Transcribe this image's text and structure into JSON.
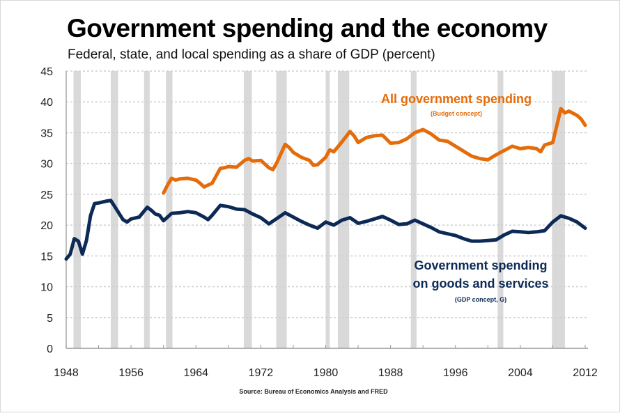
{
  "chart_data": {
    "type": "line",
    "title": "Government spending and the economy",
    "subtitle": "Federal, state, and local spending as a share of GDP (percent)",
    "source": "Source: Bureau of Economics Analysis and FRED",
    "xlabel": "",
    "ylabel": "",
    "xlim": [
      1948,
      2012
    ],
    "ylim": [
      0,
      45
    ],
    "grid": true,
    "y_ticks": [
      0,
      5,
      10,
      15,
      20,
      25,
      30,
      35,
      40,
      45
    ],
    "x_ticks": [
      1948,
      1956,
      1964,
      1972,
      1980,
      1988,
      1996,
      2004,
      2012
    ],
    "recessions": [
      [
        1948.9,
        1949.8
      ],
      [
        1953.5,
        1954.4
      ],
      [
        1957.6,
        1958.3
      ],
      [
        1960.3,
        1961.1
      ],
      [
        1969.9,
        1970.9
      ],
      [
        1973.9,
        1975.2
      ],
      [
        1980.0,
        1980.5
      ],
      [
        1981.5,
        1982.9
      ],
      [
        1990.5,
        1991.2
      ],
      [
        2001.2,
        2001.9
      ],
      [
        2007.9,
        2009.5
      ]
    ],
    "series": [
      {
        "name": "All government spending",
        "note": "(Budget concept)",
        "color": "#e46c0a",
        "x": [
          1960,
          1960.5,
          1961,
          1961.5,
          1962,
          1963,
          1964,
          1964.5,
          1965,
          1965.5,
          1966,
          1967,
          1967.5,
          1968,
          1969,
          1970,
          1970.5,
          1971,
          1972,
          1973,
          1973.5,
          1974,
          1975,
          1975.5,
          1976,
          1977,
          1978,
          1978.5,
          1979,
          1980,
          1980.5,
          1981,
          1982,
          1983,
          1983.5,
          1984,
          1985,
          1986,
          1987,
          1988,
          1989,
          1990,
          1991,
          1992,
          1993,
          1994,
          1995,
          1996,
          1997,
          1998,
          1999,
          2000,
          2001,
          2002,
          2003,
          2004,
          2005,
          2006,
          2006.5,
          2007,
          2008,
          2009,
          2009.5,
          2010,
          2011,
          2011.5,
          2012
        ],
        "values": [
          25.2,
          26.5,
          27.6,
          27.3,
          27.5,
          27.6,
          27.3,
          26.8,
          26.2,
          26.5,
          26.8,
          29.2,
          29.3,
          29.5,
          29.4,
          30.5,
          30.8,
          30.4,
          30.5,
          29.3,
          29.0,
          30.2,
          33.1,
          32.6,
          31.8,
          31.0,
          30.5,
          29.7,
          29.8,
          31.0,
          32.2,
          31.9,
          33.5,
          35.2,
          34.5,
          33.4,
          34.2,
          34.5,
          34.6,
          33.3,
          33.4,
          34.0,
          35.0,
          35.5,
          34.8,
          33.8,
          33.6,
          32.8,
          32.0,
          31.2,
          30.8,
          30.6,
          31.4,
          32.1,
          32.8,
          32.4,
          32.6,
          32.4,
          31.9,
          33.0,
          33.4,
          38.9,
          38.2,
          38.5,
          37.8,
          37.2,
          36.2
        ]
      },
      {
        "name": "Government spending on goods and services",
        "note": "(GDP concept, G)",
        "color": "#0c2a55",
        "x": [
          1948,
          1948.5,
          1949,
          1949.5,
          1950,
          1950.5,
          1951,
          1951.5,
          1952,
          1953,
          1953.5,
          1954,
          1955,
          1955.5,
          1956,
          1957,
          1958,
          1958.5,
          1959,
          1959.5,
          1960,
          1961,
          1962,
          1963,
          1964,
          1965,
          1965.5,
          1966,
          1967,
          1968,
          1969,
          1970,
          1971,
          1972,
          1973,
          1974,
          1975,
          1976,
          1977,
          1978,
          1979,
          1980,
          1981,
          1982,
          1983,
          1984,
          1985,
          1986,
          1987,
          1988,
          1989,
          1990,
          1991,
          1992,
          1993,
          1994,
          1995,
          1996,
          1997,
          1998,
          1999,
          2000,
          2001,
          2002,
          2003,
          2004,
          2005,
          2006,
          2007,
          2008,
          2009,
          2010,
          2011,
          2012
        ],
        "values": [
          14.5,
          15.3,
          17.8,
          17.4,
          15.3,
          17.5,
          21.5,
          23.5,
          23.6,
          23.9,
          24.0,
          23.0,
          20.9,
          20.5,
          21.0,
          21.3,
          22.9,
          22.4,
          21.8,
          21.6,
          20.7,
          21.9,
          22.0,
          22.2,
          22.0,
          21.3,
          20.9,
          21.6,
          23.2,
          23.0,
          22.6,
          22.5,
          21.8,
          21.2,
          20.2,
          21.1,
          22.0,
          21.3,
          20.6,
          20.0,
          19.5,
          20.5,
          20.0,
          20.8,
          21.2,
          20.3,
          20.6,
          21.0,
          21.4,
          20.8,
          20.1,
          20.2,
          20.8,
          20.2,
          19.6,
          18.9,
          18.6,
          18.3,
          17.8,
          17.4,
          17.4,
          17.5,
          17.6,
          18.4,
          19.0,
          18.9,
          18.8,
          18.9,
          19.1,
          20.5,
          21.5,
          21.1,
          20.5,
          19.5
        ]
      }
    ],
    "annotations": [
      {
        "text": "All government spending",
        "sub": "(Budget concept)",
        "series": 0
      },
      {
        "text": "Government spending",
        "text2": "on goods and services",
        "sub": "(GDP concept, G)",
        "series": 1
      }
    ]
  }
}
